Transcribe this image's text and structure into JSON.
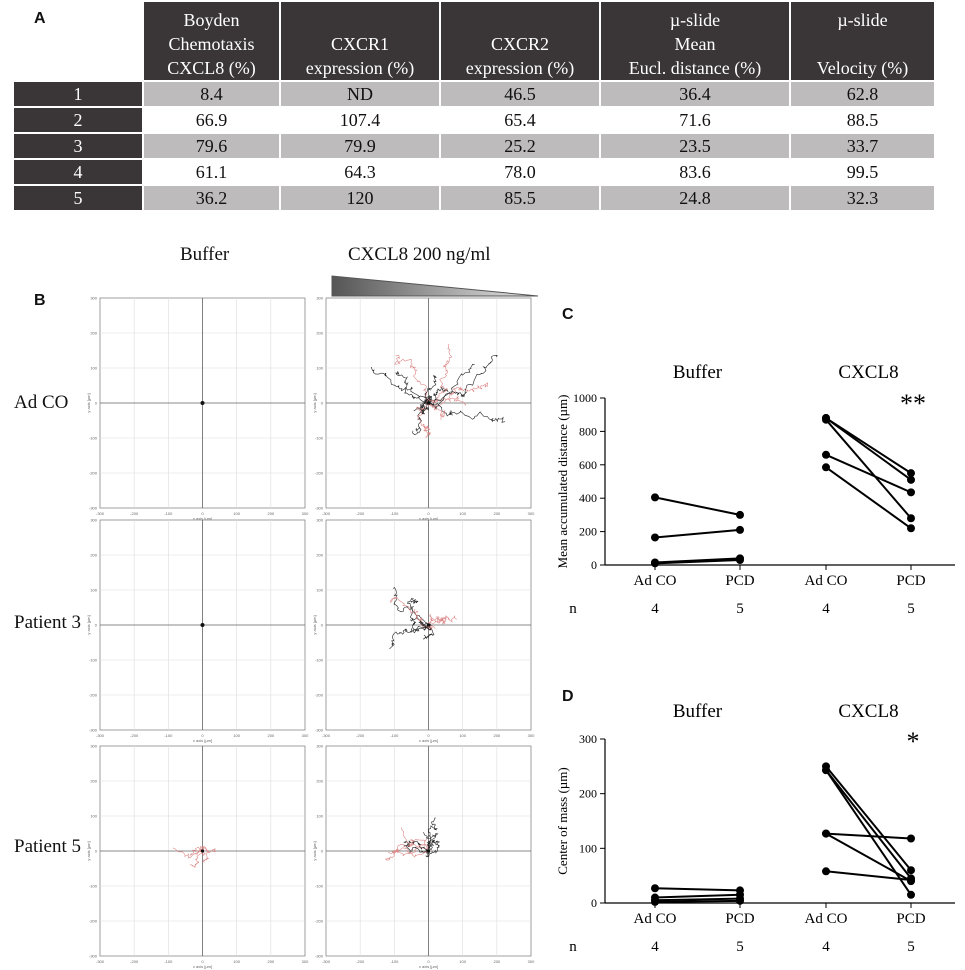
{
  "panel_a": {
    "letter": "A",
    "headers": [
      [
        "Boyden",
        "Chemotaxis",
        "CXCL8 (%)"
      ],
      [
        "CXCR1",
        "expression (%)"
      ],
      [
        "CXCR2",
        "expression (%)"
      ],
      [
        "µ-slide",
        "Mean",
        "Eucl. distance (%)"
      ],
      [
        "µ-slide",
        "",
        "Velocity (%)"
      ]
    ],
    "rows": [
      {
        "label": "1",
        "values": [
          "8.4",
          "ND",
          "46.5",
          "36.4",
          "62.8"
        ]
      },
      {
        "label": "2",
        "values": [
          "66.9",
          "107.4",
          "65.4",
          "71.6",
          "88.5"
        ]
      },
      {
        "label": "3",
        "values": [
          "79.6",
          "79.9",
          "25.2",
          "23.5",
          "33.7"
        ]
      },
      {
        "label": "4",
        "values": [
          "61.1",
          "64.3",
          "78.0",
          "83.6",
          "99.5"
        ]
      },
      {
        "label": "5",
        "values": [
          "36.2",
          "120",
          "85.5",
          "24.8",
          "32.3"
        ]
      }
    ]
  },
  "panel_b": {
    "letter": "B",
    "col_headers": [
      "Buffer",
      "CXCL8 200 ng/ml"
    ],
    "row_labels": [
      "Ad CO",
      "Patient 3",
      "Patient 5"
    ],
    "axis_ticks": [
      "-300",
      "-200",
      "-100",
      "0",
      "100",
      "200",
      "300"
    ],
    "x_axis_label": "x axis [µm]",
    "y_axis_label": "y axis [µm]"
  },
  "chart_data": [
    {
      "type": "scatter",
      "panel": "C",
      "ylabel": "Mean accumulated distance (µm)",
      "ylim": [
        0,
        1000
      ],
      "yticks": [
        "0",
        "200",
        "400",
        "600",
        "800",
        "1000"
      ],
      "groups": [
        {
          "name": "Buffer",
          "categories": [
            "Ad CO",
            "PCD"
          ],
          "n": [
            "4",
            "5"
          ],
          "pairs": [
            [
              405,
              300
            ],
            [
              165,
              210
            ],
            [
              15,
              40
            ],
            [
              10,
              30
            ],
            [
              null,
              15
            ]
          ]
        },
        {
          "name": "CXCL8",
          "categories": [
            "Ad CO",
            "PCD"
          ],
          "n": [
            "4",
            "5"
          ],
          "significance": "**",
          "pairs": [
            [
              880,
              550
            ],
            [
              870,
              280
            ],
            [
              660,
              435
            ],
            [
              585,
              220
            ],
            [
              null,
              510
            ]
          ]
        }
      ],
      "connections": [
        {
          "group": 0,
          "from": 405,
          "to": 300
        },
        {
          "group": 0,
          "from": 165,
          "to": 210
        },
        {
          "group": 0,
          "from": 15,
          "to": 40
        },
        {
          "group": 0,
          "from": 10,
          "to": 30
        },
        {
          "group": 1,
          "from": 880,
          "to": 550
        },
        {
          "group": 1,
          "from": 870,
          "to": 280
        },
        {
          "group": 1,
          "from": 880,
          "to": 510
        },
        {
          "group": 1,
          "from": 660,
          "to": 435
        },
        {
          "group": 1,
          "from": 585,
          "to": 220
        }
      ]
    },
    {
      "type": "scatter",
      "panel": "D",
      "ylabel": "Center of mass (µm)",
      "ylim": [
        0,
        300
      ],
      "yticks": [
        "0",
        "100",
        "200",
        "300"
      ],
      "groups": [
        {
          "name": "Buffer",
          "categories": [
            "Ad CO",
            "PCD"
          ],
          "n": [
            "4",
            "5"
          ]
        },
        {
          "name": "CXCL8",
          "categories": [
            "Ad CO",
            "PCD"
          ],
          "n": [
            "4",
            "5"
          ],
          "significance": "*"
        }
      ],
      "connections": [
        {
          "group": 0,
          "from": 27,
          "to": 23
        },
        {
          "group": 0,
          "from": 10,
          "to": 15
        },
        {
          "group": 0,
          "from": 5,
          "to": 8
        },
        {
          "group": 0,
          "from": 2,
          "to": 4
        },
        {
          "group": 1,
          "from": 250,
          "to": 60
        },
        {
          "group": 1,
          "from": 243,
          "to": 45
        },
        {
          "group": 1,
          "from": 243,
          "to": 15
        },
        {
          "group": 1,
          "from": 127,
          "to": 118
        },
        {
          "group": 1,
          "from": 127,
          "to": 40
        },
        {
          "group": 1,
          "from": 58,
          "to": 42
        }
      ]
    }
  ],
  "panel_letters": {
    "c": "C",
    "d": "D"
  },
  "n_label": "n"
}
